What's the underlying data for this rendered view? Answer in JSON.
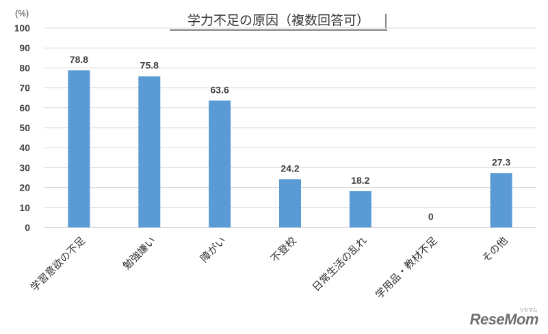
{
  "chart_data": {
    "type": "bar",
    "title": "学力不足の原因（複数回答可）",
    "unit": "(%)",
    "categories": [
      "学習意欲の不足",
      "勉強嫌い",
      "障がい",
      "不登校",
      "日常生活の乱れ",
      "学用品・教材不足",
      "その他"
    ],
    "values": [
      78.8,
      75.8,
      63.6,
      24.2,
      18.2,
      0,
      27.3
    ],
    "value_labels": [
      "78.8",
      "75.8",
      "63.6",
      "24.2",
      "18.2",
      "0",
      "27.3"
    ],
    "ylim": [
      0,
      100
    ],
    "yticks": [
      "0",
      "10",
      "20",
      "30",
      "40",
      "50",
      "60",
      "70",
      "80",
      "90",
      "100"
    ],
    "grid": true,
    "legend": "none",
    "bar_color": "#5b9bd5"
  },
  "watermark": {
    "text": "ReseMom",
    "sub": "リセマム"
  }
}
